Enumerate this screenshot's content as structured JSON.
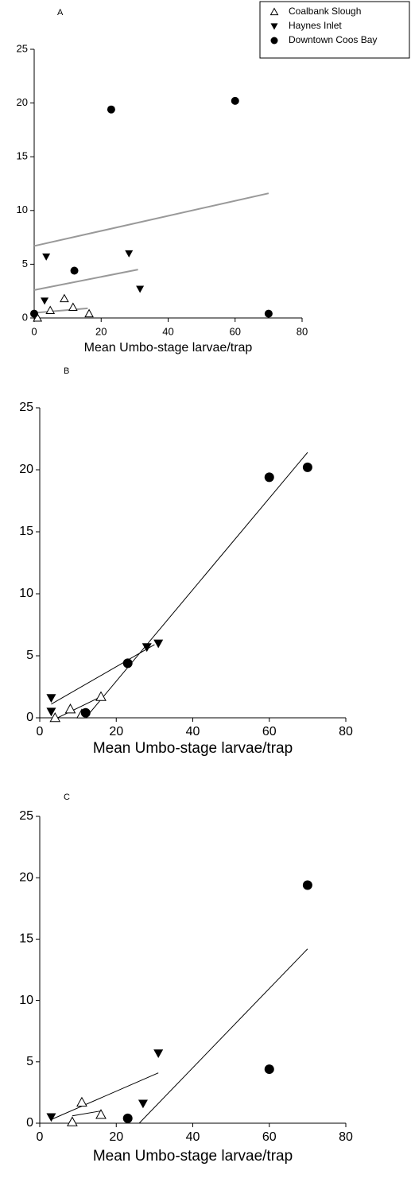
{
  "chart_data": [
    {
      "type": "scatter",
      "title": "A",
      "x_label": "Mean Umbo-stage larvae/trap",
      "xlim": [
        0,
        80
      ],
      "ylim": [
        0,
        25
      ],
      "xticks": [
        0,
        20,
        40,
        60,
        80
      ],
      "yticks": [
        0,
        5,
        10,
        15,
        20,
        25
      ],
      "legend": "top-right",
      "series": [
        {
          "name": "Coalbank Slough",
          "marker": "triangle-open",
          "color": "#000000",
          "x": [
            1,
            4.8,
            9,
            11.6,
            16.4
          ],
          "values": [
            0,
            0.7,
            1.8,
            1.0,
            0.4
          ]
        },
        {
          "name": "Haynes Inlet",
          "marker": "triangle-down",
          "color": "#000000",
          "x": [
            3.6,
            3.1,
            28.3,
            31.6
          ],
          "values": [
            5.7,
            1.6,
            6.0,
            2.7
          ]
        },
        {
          "name": "Downtown Coos Bay",
          "marker": "circle",
          "color": "#000000",
          "x": [
            0,
            12,
            23,
            60,
            70
          ],
          "values": [
            0.4,
            4.4,
            19.4,
            20.2,
            0.4
          ]
        }
      ],
      "fit_lines": [
        {
          "color": "#999999",
          "x": [
            1,
            16
          ],
          "values": [
            0.5,
            0.9
          ]
        },
        {
          "color": "#999999",
          "x": [
            0,
            31
          ],
          "values": [
            2.6,
            4.5
          ]
        },
        {
          "color": "#999999",
          "x": [
            0,
            70
          ],
          "values": [
            6.7,
            11.6
          ]
        }
      ]
    },
    {
      "type": "scatter",
      "title": "B",
      "x_label": "Mean Umbo-stage larvae/trap",
      "xlim": [
        0,
        80
      ],
      "ylim": [
        0,
        25
      ],
      "xticks": [
        0,
        20,
        40,
        60,
        80
      ],
      "yticks": [
        0,
        5,
        10,
        15,
        20,
        25
      ],
      "series": [
        {
          "marker": "triangle-open",
          "color": "#000000",
          "x": [
            4,
            8,
            11,
            16
          ],
          "values": [
            0,
            0.7,
            0.3,
            1.7
          ]
        },
        {
          "marker": "triangle-down",
          "color": "#000000",
          "x": [
            3,
            3,
            28,
            31
          ],
          "values": [
            0.5,
            1.6,
            5.7,
            6.0
          ]
        },
        {
          "marker": "circle",
          "color": "#000000",
          "x": [
            12,
            23,
            60,
            70
          ],
          "values": [
            0.4,
            4.4,
            19.4,
            20.2
          ]
        }
      ],
      "fit_lines": [
        {
          "color": "#000000",
          "x": [
            4,
            16
          ],
          "values": [
            -0.1,
            1.7
          ]
        },
        {
          "color": "#000000",
          "x": [
            3,
            30
          ],
          "values": [
            1.1,
            5.9
          ]
        },
        {
          "color": "#000000",
          "x": [
            12,
            70
          ],
          "values": [
            0,
            21.4
          ]
        }
      ]
    },
    {
      "type": "scatter",
      "title": "C",
      "x_label": "Mean Umbo-stage larvae/trap",
      "xlim": [
        0,
        80
      ],
      "ylim": [
        0,
        25
      ],
      "xticks": [
        0,
        20,
        40,
        60,
        80
      ],
      "yticks": [
        0,
        5,
        10,
        15,
        20,
        25
      ],
      "series": [
        {
          "marker": "triangle-open",
          "color": "#000000",
          "x": [
            11,
            8.5,
            16
          ],
          "values": [
            1.7,
            0.1,
            0.7
          ]
        },
        {
          "marker": "triangle-down",
          "color": "#000000",
          "x": [
            3,
            27,
            31
          ],
          "values": [
            0.5,
            1.6,
            5.7
          ]
        },
        {
          "marker": "circle",
          "color": "#000000",
          "x": [
            23,
            60,
            70
          ],
          "values": [
            0.4,
            4.4,
            19.4
          ]
        }
      ],
      "fit_lines": [
        {
          "color": "#000000",
          "x": [
            8.5,
            16
          ],
          "values": [
            0.6,
            1.0
          ]
        },
        {
          "color": "#000000",
          "x": [
            3,
            31
          ],
          "values": [
            0.3,
            4.1
          ]
        },
        {
          "color": "#000000",
          "x": [
            26,
            70
          ],
          "values": [
            0,
            14.2
          ]
        }
      ]
    }
  ]
}
